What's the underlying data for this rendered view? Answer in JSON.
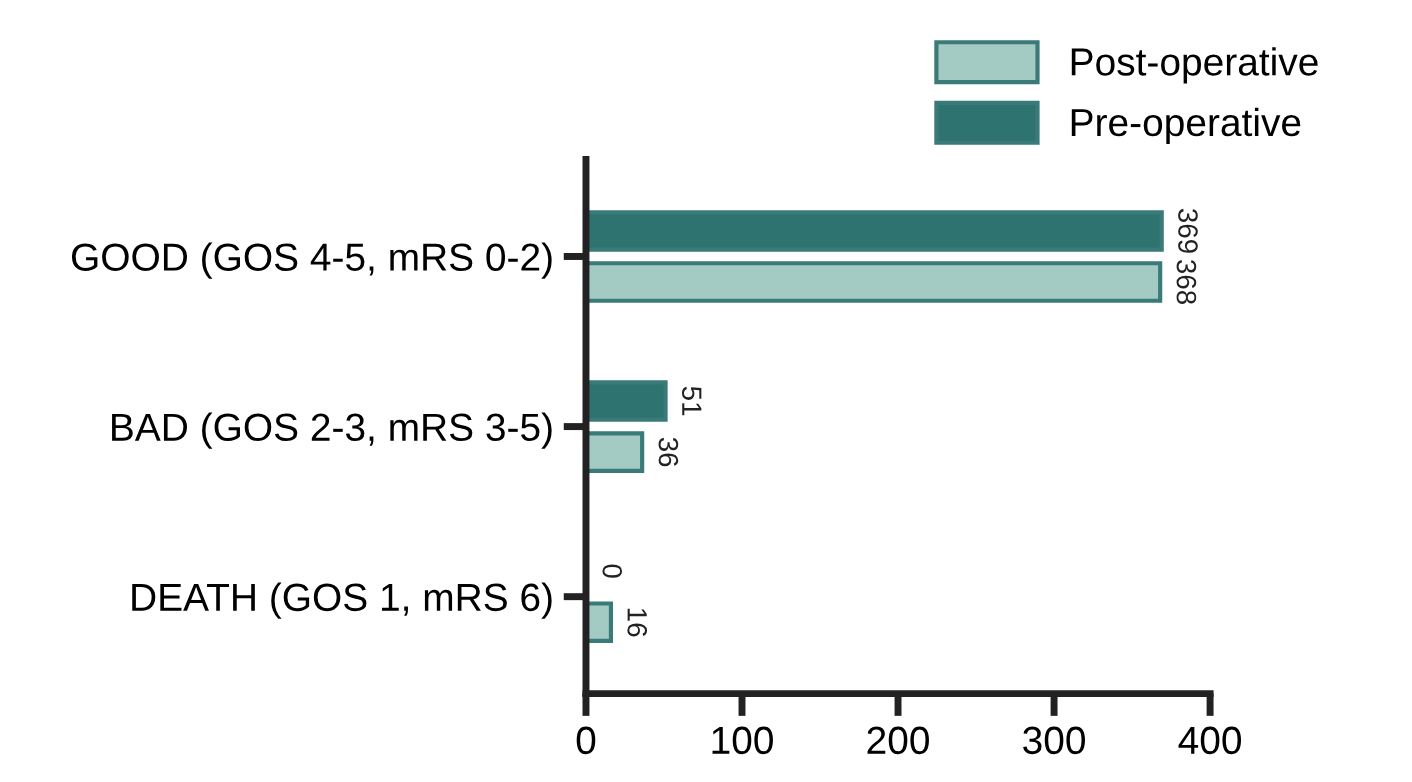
{
  "chart_data": {
    "type": "bar",
    "orientation": "horizontal",
    "categories": [
      "GOOD (GOS 4-5, mRS 0-2)",
      "BAD (GOS 2-3, mRS 3-5)",
      "DEATH (GOS 1, mRS 6)"
    ],
    "series": [
      {
        "name": "Pre-operative",
        "color": "#2f7370",
        "values": [
          369,
          51,
          0
        ]
      },
      {
        "name": "Post-operative",
        "color": "#a3cbc3",
        "values": [
          368,
          36,
          16
        ]
      }
    ],
    "xlim": [
      0,
      400
    ],
    "xticks": [
      0,
      100,
      200,
      300,
      400
    ],
    "data_labels": true,
    "legend": "top right",
    "grid": false
  }
}
